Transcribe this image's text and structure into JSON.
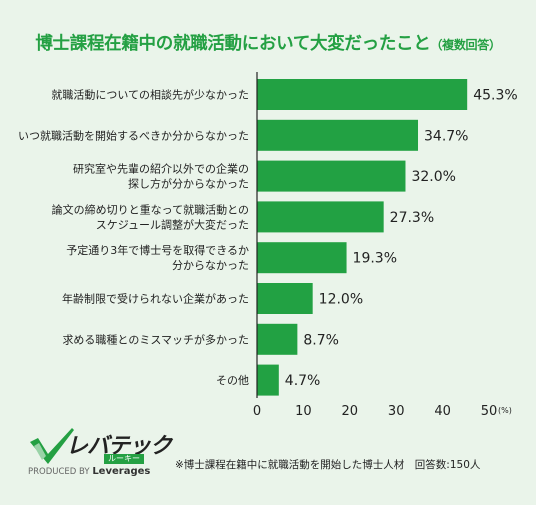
{
  "title": "博士課程在籍中の就職活動において大変だったこと",
  "subtitle": "（複数回答）",
  "chart_data": {
    "type": "bar",
    "orientation": "horizontal",
    "categories": [
      [
        "就職活動についての相談先が少なかった"
      ],
      [
        "いつ就職活動を開始するべきか分からなかった"
      ],
      [
        "研究室や先輩の紹介以外での企業の",
        "探し方が分からなかった"
      ],
      [
        "論文の締め切りと重なって就職活動との",
        "スケジュール調整が大変だった"
      ],
      [
        "予定通り3年で博士号を取得できるか",
        "分からなかった"
      ],
      [
        "年齢制限で受けられない企業があった"
      ],
      [
        "求める職種とのミスマッチが多かった"
      ],
      [
        "その他"
      ]
    ],
    "values": [
      45.3,
      34.7,
      32.0,
      27.3,
      19.3,
      12.0,
      8.7,
      4.7
    ],
    "value_labels": [
      "45.3%",
      "34.7%",
      "32.0%",
      "27.3%",
      "19.3%",
      "12.0%",
      "8.7%",
      "4.7%"
    ],
    "xlim": [
      0,
      50
    ],
    "xticks": [
      "0",
      "10",
      "20",
      "30",
      "40",
      "50"
    ],
    "x_unit": "(%)",
    "bar_color": "#22a143",
    "grid": false
  },
  "footer": "※博士課程在籍中に就職活動を開始した博士人材　回答数:150人",
  "logo": {
    "name": "レバテック",
    "sub": "ルーキー",
    "produced_by": "PRODUCED BY",
    "brand": "Leverages"
  }
}
